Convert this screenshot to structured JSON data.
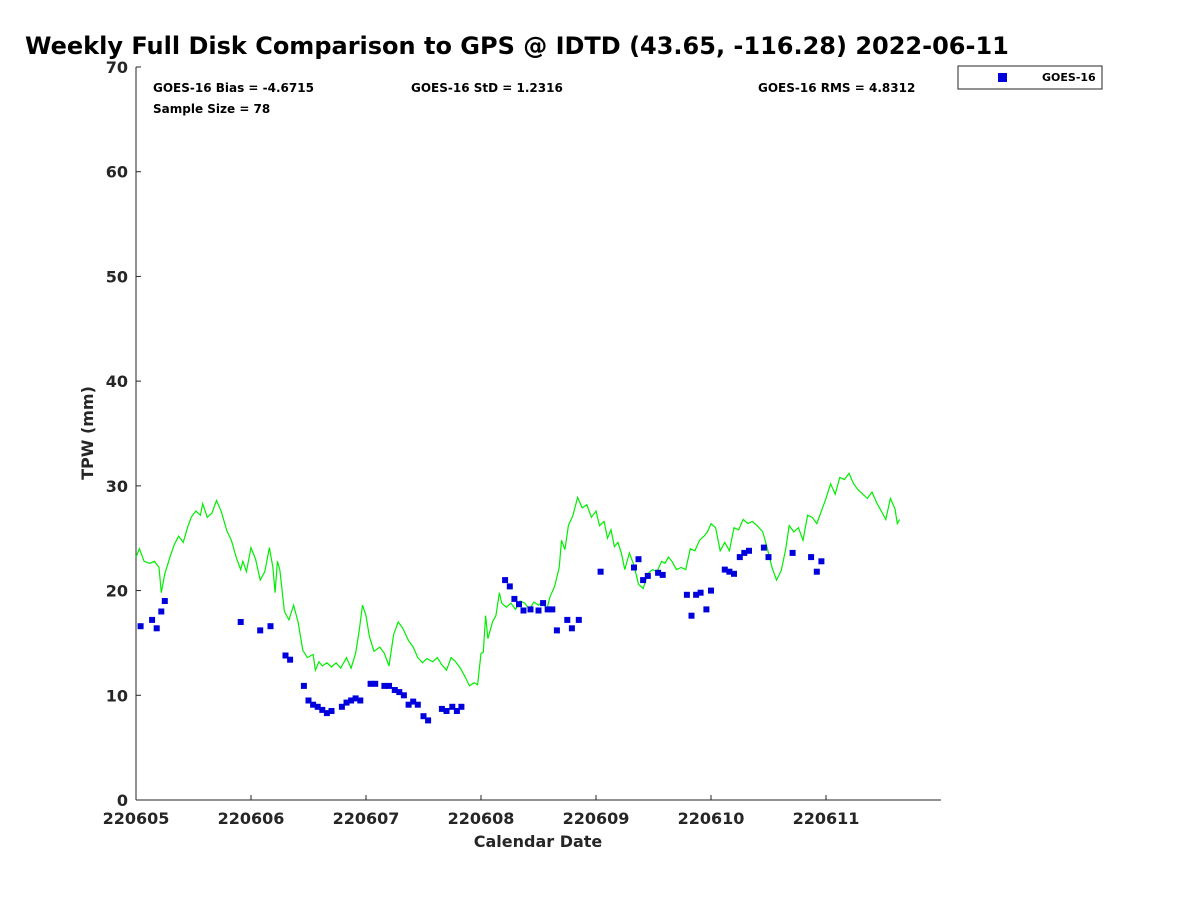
{
  "chart_data": {
    "type": "scatter",
    "title": "Weekly Full Disk Comparison to GPS @ IDTD (43.65, -116.28) 2022-06-11",
    "xlabel": "Calendar Date",
    "ylabel": "TPW (mm)",
    "xlim": [
      0,
      7
    ],
    "ylim": [
      0,
      70
    ],
    "y_ticks": [
      0,
      10,
      20,
      30,
      40,
      50,
      60,
      70
    ],
    "x_ticks": [
      "220605",
      "220606",
      "220607",
      "220608",
      "220609",
      "220610",
      "220611"
    ],
    "legend_position": "top-right",
    "grid": false,
    "stats": {
      "bias": "GOES-16 Bias = -4.6715",
      "std": "GOES-16 StD = 1.2316",
      "rms": "GOES-16 RMS = 4.8312",
      "sample": "Sample Size = 78"
    },
    "series": [
      {
        "name": "GOES-16",
        "kind": "markers",
        "color": "#0000dd",
        "points": [
          [
            0.04,
            16.6
          ],
          [
            0.14,
            17.2
          ],
          [
            0.18,
            16.4
          ],
          [
            0.22,
            18.0
          ],
          [
            0.25,
            19.0
          ],
          [
            0.91,
            17.0
          ],
          [
            1.08,
            16.2
          ],
          [
            1.17,
            16.6
          ],
          [
            1.3,
            13.8
          ],
          [
            1.34,
            13.4
          ],
          [
            1.46,
            10.9
          ],
          [
            1.5,
            9.5
          ],
          [
            1.54,
            9.1
          ],
          [
            1.58,
            8.9
          ],
          [
            1.62,
            8.6
          ],
          [
            1.66,
            8.3
          ],
          [
            1.7,
            8.5
          ],
          [
            1.79,
            8.9
          ],
          [
            1.83,
            9.3
          ],
          [
            1.87,
            9.5
          ],
          [
            1.91,
            9.7
          ],
          [
            1.95,
            9.5
          ],
          [
            2.04,
            11.1
          ],
          [
            2.08,
            11.1
          ],
          [
            2.16,
            10.9
          ],
          [
            2.2,
            10.9
          ],
          [
            2.25,
            10.5
          ],
          [
            2.29,
            10.3
          ],
          [
            2.33,
            10.0
          ],
          [
            2.37,
            9.1
          ],
          [
            2.41,
            9.4
          ],
          [
            2.45,
            9.1
          ],
          [
            2.5,
            8.0
          ],
          [
            2.54,
            7.6
          ],
          [
            2.66,
            8.7
          ],
          [
            2.7,
            8.5
          ],
          [
            2.75,
            8.9
          ],
          [
            2.79,
            8.5
          ],
          [
            2.83,
            8.9
          ],
          [
            3.21,
            21.0
          ],
          [
            3.25,
            20.4
          ],
          [
            3.29,
            19.2
          ],
          [
            3.33,
            18.7
          ],
          [
            3.37,
            18.1
          ],
          [
            3.43,
            18.2
          ],
          [
            3.5,
            18.1
          ],
          [
            3.54,
            18.8
          ],
          [
            3.58,
            18.2
          ],
          [
            3.62,
            18.2
          ],
          [
            3.66,
            16.2
          ],
          [
            3.75,
            17.2
          ],
          [
            3.79,
            16.4
          ],
          [
            3.85,
            17.2
          ],
          [
            4.04,
            21.8
          ],
          [
            4.33,
            22.2
          ],
          [
            4.37,
            23.0
          ],
          [
            4.41,
            21.0
          ],
          [
            4.45,
            21.4
          ],
          [
            4.54,
            21.7
          ],
          [
            4.58,
            21.5
          ],
          [
            4.79,
            19.6
          ],
          [
            4.83,
            17.6
          ],
          [
            4.87,
            19.6
          ],
          [
            4.91,
            19.8
          ],
          [
            4.96,
            18.2
          ],
          [
            5.0,
            20.0
          ],
          [
            5.12,
            22.0
          ],
          [
            5.16,
            21.8
          ],
          [
            5.2,
            21.6
          ],
          [
            5.25,
            23.2
          ],
          [
            5.29,
            23.6
          ],
          [
            5.33,
            23.8
          ],
          [
            5.46,
            24.1
          ],
          [
            5.5,
            23.2
          ],
          [
            5.71,
            23.6
          ],
          [
            5.87,
            23.2
          ],
          [
            5.92,
            21.8
          ],
          [
            5.96,
            22.8
          ]
        ]
      },
      {
        "name": "GPS",
        "kind": "line",
        "color": "#00ee00",
        "points": [
          [
            0.0,
            23.2
          ],
          [
            0.03,
            24.0
          ],
          [
            0.07,
            22.8
          ],
          [
            0.12,
            22.6
          ],
          [
            0.16,
            22.8
          ],
          [
            0.2,
            22.2
          ],
          [
            0.22,
            19.8
          ],
          [
            0.25,
            21.6
          ],
          [
            0.29,
            23.0
          ],
          [
            0.33,
            24.3
          ],
          [
            0.37,
            25.2
          ],
          [
            0.41,
            24.6
          ],
          [
            0.45,
            26.1
          ],
          [
            0.48,
            27.0
          ],
          [
            0.52,
            27.6
          ],
          [
            0.56,
            27.2
          ],
          [
            0.58,
            28.3
          ],
          [
            0.62,
            27.0
          ],
          [
            0.66,
            27.4
          ],
          [
            0.7,
            28.6
          ],
          [
            0.74,
            27.6
          ],
          [
            0.79,
            25.7
          ],
          [
            0.83,
            24.8
          ],
          [
            0.87,
            23.2
          ],
          [
            0.91,
            22.0
          ],
          [
            0.93,
            22.8
          ],
          [
            0.96,
            21.8
          ],
          [
            1.0,
            24.1
          ],
          [
            1.04,
            23.0
          ],
          [
            1.08,
            21.0
          ],
          [
            1.12,
            21.8
          ],
          [
            1.16,
            24.1
          ],
          [
            1.19,
            22.2
          ],
          [
            1.21,
            19.8
          ],
          [
            1.23,
            22.8
          ],
          [
            1.25,
            22.0
          ],
          [
            1.29,
            18.0
          ],
          [
            1.33,
            17.2
          ],
          [
            1.37,
            18.6
          ],
          [
            1.41,
            17.0
          ],
          [
            1.45,
            14.3
          ],
          [
            1.49,
            13.6
          ],
          [
            1.54,
            13.9
          ],
          [
            1.56,
            12.4
          ],
          [
            1.59,
            13.2
          ],
          [
            1.62,
            12.8
          ],
          [
            1.66,
            13.1
          ],
          [
            1.7,
            12.7
          ],
          [
            1.74,
            13.1
          ],
          [
            1.78,
            12.6
          ],
          [
            1.83,
            13.6
          ],
          [
            1.87,
            12.6
          ],
          [
            1.91,
            14.0
          ],
          [
            1.94,
            16.1
          ],
          [
            1.97,
            18.6
          ],
          [
            2.0,
            17.6
          ],
          [
            2.03,
            15.6
          ],
          [
            2.07,
            14.2
          ],
          [
            2.12,
            14.6
          ],
          [
            2.16,
            14.0
          ],
          [
            2.2,
            12.8
          ],
          [
            2.24,
            15.8
          ],
          [
            2.28,
            17.0
          ],
          [
            2.32,
            16.4
          ],
          [
            2.37,
            15.2
          ],
          [
            2.41,
            14.6
          ],
          [
            2.45,
            13.6
          ],
          [
            2.49,
            13.1
          ],
          [
            2.53,
            13.5
          ],
          [
            2.58,
            13.2
          ],
          [
            2.62,
            13.6
          ],
          [
            2.66,
            12.9
          ],
          [
            2.7,
            12.4
          ],
          [
            2.74,
            13.6
          ],
          [
            2.78,
            13.2
          ],
          [
            2.82,
            12.6
          ],
          [
            2.86,
            11.8
          ],
          [
            2.9,
            10.9
          ],
          [
            2.94,
            11.2
          ],
          [
            2.97,
            11.0
          ],
          [
            3.0,
            14.0
          ],
          [
            3.02,
            14.1
          ],
          [
            3.04,
            17.6
          ],
          [
            3.06,
            15.4
          ],
          [
            3.1,
            17.0
          ],
          [
            3.13,
            17.6
          ],
          [
            3.16,
            19.8
          ],
          [
            3.18,
            18.8
          ],
          [
            3.22,
            18.4
          ],
          [
            3.26,
            18.8
          ],
          [
            3.3,
            18.2
          ],
          [
            3.34,
            19.0
          ],
          [
            3.38,
            18.8
          ],
          [
            3.42,
            18.2
          ],
          [
            3.46,
            18.9
          ],
          [
            3.5,
            18.6
          ],
          [
            3.54,
            19.0
          ],
          [
            3.57,
            18.1
          ],
          [
            3.6,
            19.4
          ],
          [
            3.64,
            20.4
          ],
          [
            3.68,
            22.2
          ],
          [
            3.7,
            24.8
          ],
          [
            3.73,
            23.9
          ],
          [
            3.76,
            26.2
          ],
          [
            3.8,
            27.2
          ],
          [
            3.84,
            28.9
          ],
          [
            3.88,
            27.9
          ],
          [
            3.92,
            28.2
          ],
          [
            3.96,
            27.0
          ],
          [
            4.0,
            27.6
          ],
          [
            4.03,
            26.2
          ],
          [
            4.07,
            26.6
          ],
          [
            4.1,
            25.0
          ],
          [
            4.13,
            25.8
          ],
          [
            4.16,
            24.2
          ],
          [
            4.19,
            24.6
          ],
          [
            4.22,
            23.6
          ],
          [
            4.25,
            22.0
          ],
          [
            4.29,
            23.6
          ],
          [
            4.33,
            22.4
          ],
          [
            4.37,
            20.6
          ],
          [
            4.41,
            20.2
          ],
          [
            4.45,
            21.6
          ],
          [
            4.49,
            22.0
          ],
          [
            4.53,
            21.8
          ],
          [
            4.57,
            22.8
          ],
          [
            4.6,
            22.6
          ],
          [
            4.63,
            23.2
          ],
          [
            4.66,
            22.8
          ],
          [
            4.7,
            22.0
          ],
          [
            4.74,
            22.2
          ],
          [
            4.78,
            22.0
          ],
          [
            4.82,
            24.0
          ],
          [
            4.86,
            23.8
          ],
          [
            4.9,
            24.8
          ],
          [
            4.94,
            25.2
          ],
          [
            4.97,
            25.6
          ],
          [
            5.0,
            26.4
          ],
          [
            5.04,
            26.0
          ],
          [
            5.08,
            23.8
          ],
          [
            5.12,
            24.6
          ],
          [
            5.16,
            23.8
          ],
          [
            5.2,
            26.0
          ],
          [
            5.24,
            25.8
          ],
          [
            5.28,
            26.8
          ],
          [
            5.32,
            26.4
          ],
          [
            5.36,
            26.6
          ],
          [
            5.4,
            26.2
          ],
          [
            5.45,
            25.6
          ],
          [
            5.49,
            24.0
          ],
          [
            5.53,
            22.2
          ],
          [
            5.57,
            21.0
          ],
          [
            5.61,
            21.9
          ],
          [
            5.65,
            24.0
          ],
          [
            5.68,
            26.2
          ],
          [
            5.72,
            25.6
          ],
          [
            5.76,
            26.0
          ],
          [
            5.8,
            24.8
          ],
          [
            5.84,
            27.2
          ],
          [
            5.88,
            27.0
          ],
          [
            5.92,
            26.4
          ],
          [
            5.96,
            27.6
          ],
          [
            6.0,
            28.8
          ],
          [
            6.04,
            30.2
          ],
          [
            6.08,
            29.2
          ],
          [
            6.12,
            30.8
          ],
          [
            6.16,
            30.6
          ],
          [
            6.2,
            31.2
          ],
          [
            6.24,
            30.2
          ],
          [
            6.28,
            29.6
          ],
          [
            6.32,
            29.2
          ],
          [
            6.36,
            28.8
          ],
          [
            6.4,
            29.4
          ],
          [
            6.44,
            28.4
          ],
          [
            6.48,
            27.6
          ],
          [
            6.52,
            26.8
          ],
          [
            6.56,
            28.8
          ],
          [
            6.6,
            27.8
          ],
          [
            6.62,
            26.4
          ],
          [
            6.64,
            26.8
          ]
        ]
      }
    ]
  }
}
